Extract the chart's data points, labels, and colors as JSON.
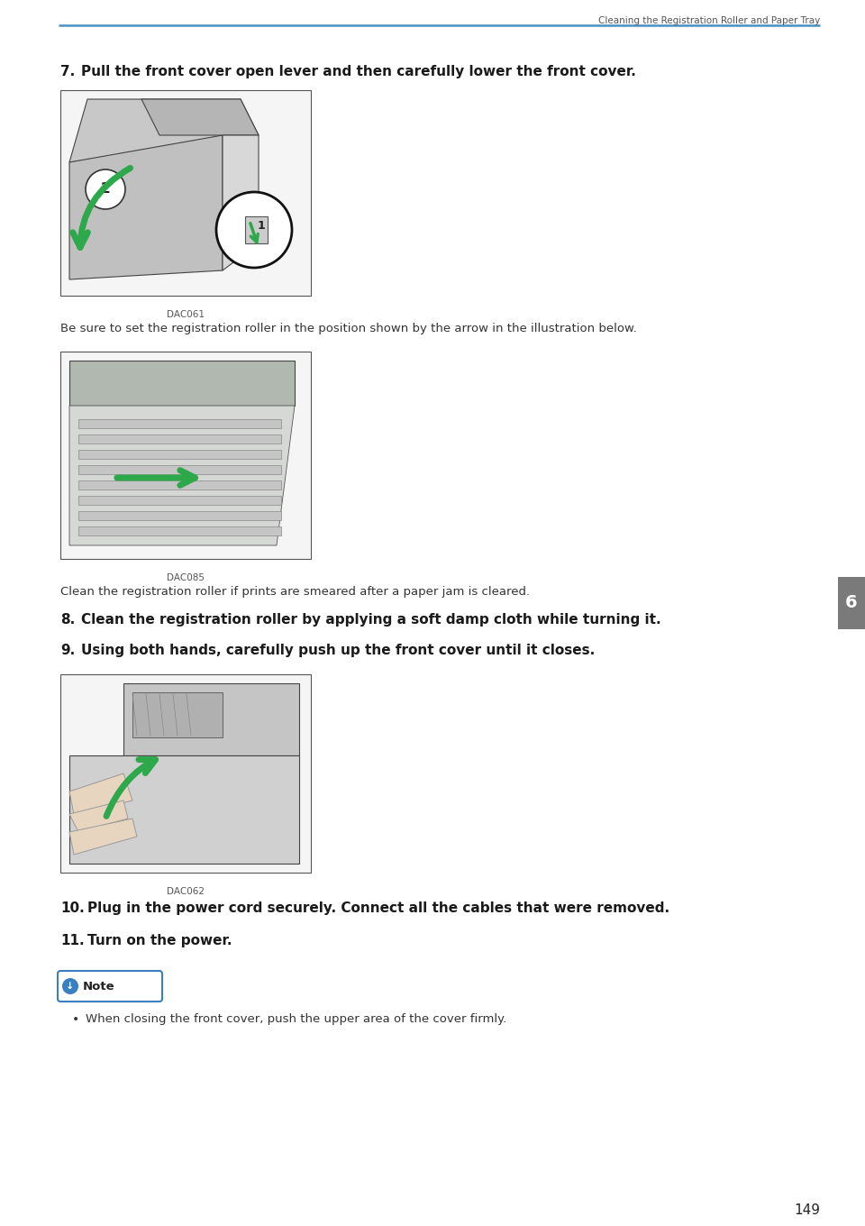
{
  "page_title": "Cleaning the Registration Roller and Paper Tray",
  "page_number": "149",
  "header_line_color": "#4a90c4",
  "background_color": "#ffffff",
  "tab_color": "#7a7a7a",
  "tab_text": "6",
  "step7_bold": "7.",
  "step7_rest": "  Pull the front cover open lever and then carefully lower the front cover.",
  "img1_caption": "DAC061",
  "note1_text": "Be sure to set the registration roller in the position shown by the arrow in the illustration below.",
  "img2_caption": "DAC085",
  "note2_text": "Clean the registration roller if prints are smeared after a paper jam is cleared.",
  "step8_bold": "8.",
  "step8_rest": "  Clean the registration roller by applying a soft damp cloth while turning it.",
  "step9_bold": "9.",
  "step9_rest": "  Using both hands, carefully push up the front cover until it closes.",
  "img3_caption": "DAC062",
  "step10_bold": "10.",
  "step10_rest": "  Plug in the power cord securely. Connect all the cables that were removed.",
  "step11_bold": "11.",
  "step11_rest": "  Turn on the power.",
  "note_icon_color": "#3a7fc1",
  "note_border_color": "#3a7fc1",
  "bullet_text": "When closing the front cover, push the upper area of the cover firmly.",
  "img_box_color": "#f5f5f5",
  "img_box_edge": "#555555",
  "green_arrow": "#2da84a"
}
